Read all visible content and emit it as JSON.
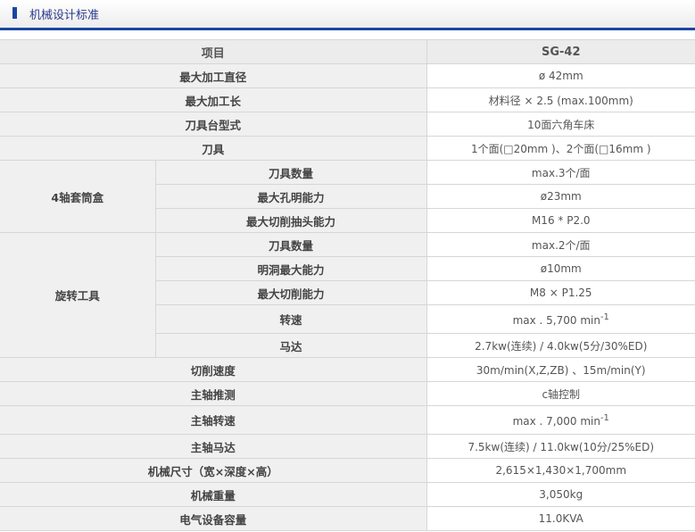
{
  "header": {
    "title": "机械设计标准"
  },
  "table": {
    "col_item": "项目",
    "col_model": "SG-42",
    "rows": {
      "r1": {
        "label": "最大加工直径",
        "value": "ø 42mm"
      },
      "r2": {
        "label": "最大加工长",
        "value": "材料径 × 2.5 (max.100mm)"
      },
      "r3": {
        "label": "刀具台型式",
        "value": "10面六角车床"
      },
      "r4": {
        "label": "刀具",
        "value": "1个面(□20mm )、2个面(□16mm )"
      },
      "g1": {
        "label": "4轴套筒盒",
        "items": [
          {
            "label": "刀具数量",
            "value": "max.3个/面"
          },
          {
            "label": "最大孔明能力",
            "value": "ø23mm"
          },
          {
            "label": "最大切削抽头能力",
            "value": "M16 * P2.0"
          }
        ]
      },
      "g2": {
        "label": "旋转工具",
        "items": [
          {
            "label": "刀具数量",
            "value": "max.2个/面"
          },
          {
            "label": "明洞最大能力",
            "value": "ø10mm"
          },
          {
            "label": "最大切削能力",
            "value": "M8 × P1.25"
          },
          {
            "label": "转速",
            "value": "max . 5,700 min",
            "sup": "-1"
          },
          {
            "label": "马达",
            "value": "2.7kw(连续) / 4.0kw(5分/30%ED)"
          }
        ]
      },
      "r5": {
        "label": "切削速度",
        "value": "30m/min(X,Z,ZB) 、15m/min(Y)"
      },
      "r6": {
        "label": "主轴推测",
        "value": "c轴控制"
      },
      "r7": {
        "label": "主轴转速",
        "value": "max . 7,000 min",
        "sup": "-1"
      },
      "r8": {
        "label": "主轴马达",
        "value": "7.5kw(连续) / 11.0kw(10分/25%ED)"
      },
      "r9": {
        "label": "机械尺寸（宽×深度×高）",
        "value": "2,615×1,430×1,700mm"
      },
      "r10": {
        "label": "机械重量",
        "value": "3,050kg"
      },
      "r11": {
        "label": "电气设备容量",
        "value": "11.0KVA"
      }
    }
  }
}
